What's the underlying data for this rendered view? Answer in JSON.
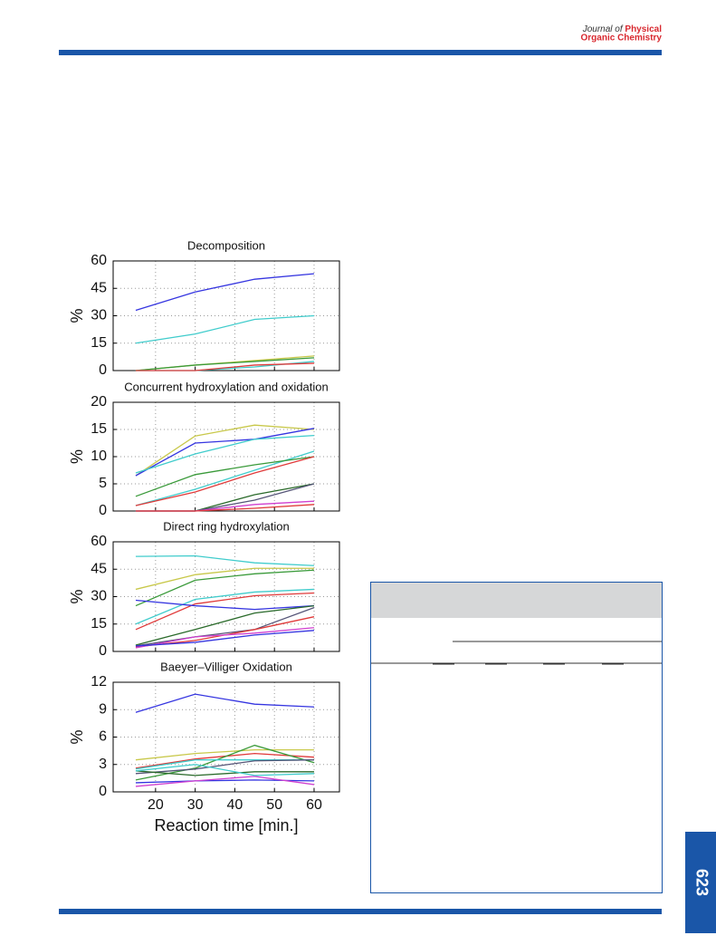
{
  "header": {
    "journal_prefix": "Journal of",
    "journal_name_1": "Physical",
    "journal_name_2": "Organic Chemistry"
  },
  "page_number": "623",
  "chart_data": [
    {
      "type": "line",
      "title": "Decomposition",
      "ylabel": "%",
      "x": [
        15,
        30,
        45,
        60
      ],
      "xlim": [
        9.3,
        66.4
      ],
      "xticks": [
        20,
        30,
        40,
        50,
        60
      ],
      "x_tick_labels": false,
      "ylim": [
        0,
        60
      ],
      "yticks": [
        0,
        15,
        30,
        45,
        60
      ],
      "grid": true,
      "series": [
        {
          "color": "#3535e0",
          "values": [
            33,
            43,
            50,
            53
          ]
        },
        {
          "color": "#40cccc",
          "values": [
            15,
            20,
            28,
            30
          ]
        },
        {
          "color": "#c8c84a",
          "values": [
            0,
            3,
            5.5,
            8
          ]
        },
        {
          "color": "#3a9a3a",
          "values": [
            0,
            3,
            5,
            7
          ]
        },
        {
          "color": "#40cccc",
          "values": [
            0,
            0,
            2,
            5
          ]
        },
        {
          "color": "#e03a3a",
          "values": [
            0,
            0,
            3,
            4
          ]
        }
      ]
    },
    {
      "type": "line",
      "title": "Concurrent hydroxylation and oxidation",
      "ylabel": "%",
      "x": [
        15,
        30,
        45,
        60
      ],
      "xlim": [
        9.3,
        66.4
      ],
      "xticks": [
        20,
        30,
        40,
        50,
        60
      ],
      "x_tick_labels": false,
      "ylim": [
        0,
        20
      ],
      "yticks": [
        0,
        5,
        10,
        15,
        20
      ],
      "grid": true,
      "series": [
        {
          "color": "#c8c84a",
          "values": [
            6.5,
            13.8,
            15.8,
            15
          ]
        },
        {
          "color": "#3535e0",
          "values": [
            6.5,
            12.5,
            13.2,
            15.2
          ]
        },
        {
          "color": "#40cccc",
          "values": [
            7,
            10.5,
            13.2,
            13.9
          ]
        },
        {
          "color": "#40cccc",
          "values": [
            1,
            4,
            7.5,
            11
          ]
        },
        {
          "color": "#3a9a3a",
          "values": [
            2.7,
            6.7,
            8.5,
            10
          ]
        },
        {
          "color": "#e03a3a",
          "values": [
            1,
            3.5,
            7,
            10
          ]
        },
        {
          "color": "#2a6a2a",
          "values": [
            0,
            0,
            3,
            5
          ]
        },
        {
          "color": "#555577",
          "values": [
            0,
            0,
            2,
            5
          ]
        },
        {
          "color": "#d040d0",
          "values": [
            0,
            0,
            1.2,
            1.8
          ]
        },
        {
          "color": "#e03a3a",
          "values": [
            0,
            0,
            0.5,
            1.2
          ]
        }
      ]
    },
    {
      "type": "line",
      "title": "Direct ring hydroxylation",
      "ylabel": "%",
      "x": [
        15,
        30,
        45,
        60
      ],
      "xlim": [
        9.3,
        66.4
      ],
      "xticks": [
        20,
        30,
        40,
        50,
        60
      ],
      "x_tick_labels": false,
      "ylim": [
        0,
        60
      ],
      "yticks": [
        0,
        15,
        30,
        45,
        60
      ],
      "grid": true,
      "series": [
        {
          "color": "#40cccc",
          "values": [
            52,
            52.3,
            48.5,
            47
          ]
        },
        {
          "color": "#c8c84a",
          "values": [
            34,
            42,
            45.5,
            45.5
          ]
        },
        {
          "color": "#3a9a3a",
          "values": [
            25,
            39,
            42.5,
            44.5
          ]
        },
        {
          "color": "#40cccc",
          "values": [
            15,
            28.5,
            32.5,
            34
          ]
        },
        {
          "color": "#e03a3a",
          "values": [
            12,
            26,
            30.5,
            32
          ]
        },
        {
          "color": "#3535e0",
          "values": [
            28,
            25,
            23,
            25
          ]
        },
        {
          "color": "#2a6a2a",
          "values": [
            3.5,
            12,
            21,
            25
          ]
        },
        {
          "color": "#555577",
          "values": [
            3,
            8,
            12,
            24
          ]
        },
        {
          "color": "#e03a3a",
          "values": [
            2.5,
            6,
            12,
            19
          ]
        },
        {
          "color": "#d040d0",
          "values": [
            2,
            8,
            10,
            13
          ]
        },
        {
          "color": "#3535e0",
          "values": [
            3,
            5,
            9,
            11.5
          ]
        }
      ]
    },
    {
      "type": "line",
      "title": "Baeyer–Villiger Oxidation",
      "ylabel": "%",
      "xlabel": "Reaction time [min.]",
      "x": [
        15,
        30,
        45,
        60
      ],
      "xlim": [
        9.3,
        66.4
      ],
      "xticks": [
        20,
        30,
        40,
        50,
        60
      ],
      "x_tick_labels": true,
      "ylim": [
        0,
        12
      ],
      "yticks": [
        0,
        3,
        6,
        9,
        12
      ],
      "grid": true,
      "series": [
        {
          "color": "#3535e0",
          "values": [
            8.7,
            10.7,
            9.6,
            9.3
          ]
        },
        {
          "color": "#c8c84a",
          "values": [
            3.5,
            4.2,
            4.6,
            4.6
          ]
        },
        {
          "color": "#e03a3a",
          "values": [
            2.6,
            3.6,
            4.2,
            3.8
          ]
        },
        {
          "color": "#3a9a3a",
          "values": [
            1.3,
            2.6,
            5.1,
            3.2
          ]
        },
        {
          "color": "#40cccc",
          "values": [
            2.5,
            3.5,
            3.5,
            3.5
          ]
        },
        {
          "color": "#555577",
          "values": [
            2,
            2.5,
            3.4,
            3.5
          ]
        },
        {
          "color": "#2a6a2a",
          "values": [
            2.3,
            1.8,
            2.2,
            2.2
          ]
        },
        {
          "color": "#3535e0",
          "values": [
            1,
            1.2,
            1.3,
            1.2
          ]
        },
        {
          "color": "#d040d0",
          "values": [
            0.6,
            1.2,
            1.7,
            0.8
          ]
        },
        {
          "color": "#40cccc",
          "values": [
            2.3,
            3.0,
            1.8,
            2.0
          ]
        }
      ]
    }
  ]
}
